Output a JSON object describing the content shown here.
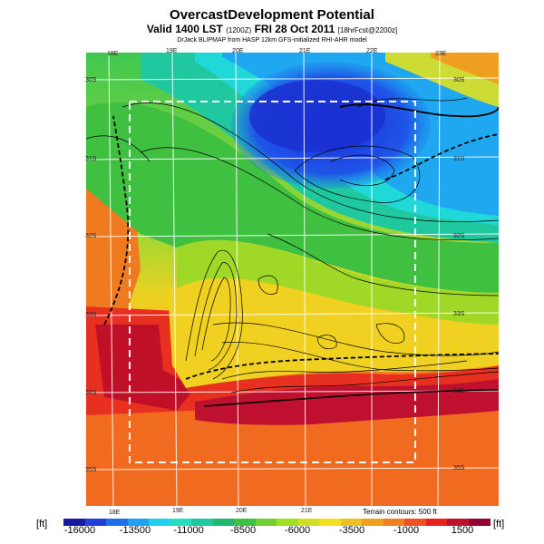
{
  "header": {
    "title": "OvercastDevelopment Potential",
    "subtitle_main": "Valid 1400 LST",
    "subtitle_small1": "(1200Z)",
    "subtitle_date": "FRI 28 Oct 2011",
    "subtitle_small2": "[18hrFcst@2200z]",
    "source_line": "DrJack BLIPMAP from HASP 12km GFS-initialized RHI-AHR model"
  },
  "map": {
    "lon_labels_top": [
      "18E",
      "19E",
      "20E",
      "21E",
      "22E",
      "23E"
    ],
    "lon_labels_bottom": [
      "18E",
      "19E",
      "20E",
      "21E"
    ],
    "lat_labels_left": [
      "30S",
      "31S",
      "32S",
      "33S",
      "34S",
      "35S"
    ],
    "lat_labels_right": [
      "30S",
      "31S",
      "32S",
      "33S",
      "34S",
      "35S"
    ]
  },
  "colorbar": {
    "unit_left": "[ft]",
    "unit_right": "[ft]",
    "tick_labels": [
      "-16000",
      "-13500",
      "-11000",
      "-8500",
      "-6000",
      "-3500",
      "-1000",
      "1500"
    ],
    "colors": [
      "#1a1aa0",
      "#1f3fd8",
      "#1f6fe8",
      "#1fa0f0",
      "#1fd0f0",
      "#20e0c0",
      "#20c8a0",
      "#20b870",
      "#40c040",
      "#70d030",
      "#a0e020",
      "#d0e020",
      "#f0e020",
      "#f0c020",
      "#f0a020",
      "#f08020",
      "#f05020",
      "#e82020",
      "#c01030",
      "#900030"
    ]
  },
  "contour_note": "Terrain contours: 500 ft"
}
